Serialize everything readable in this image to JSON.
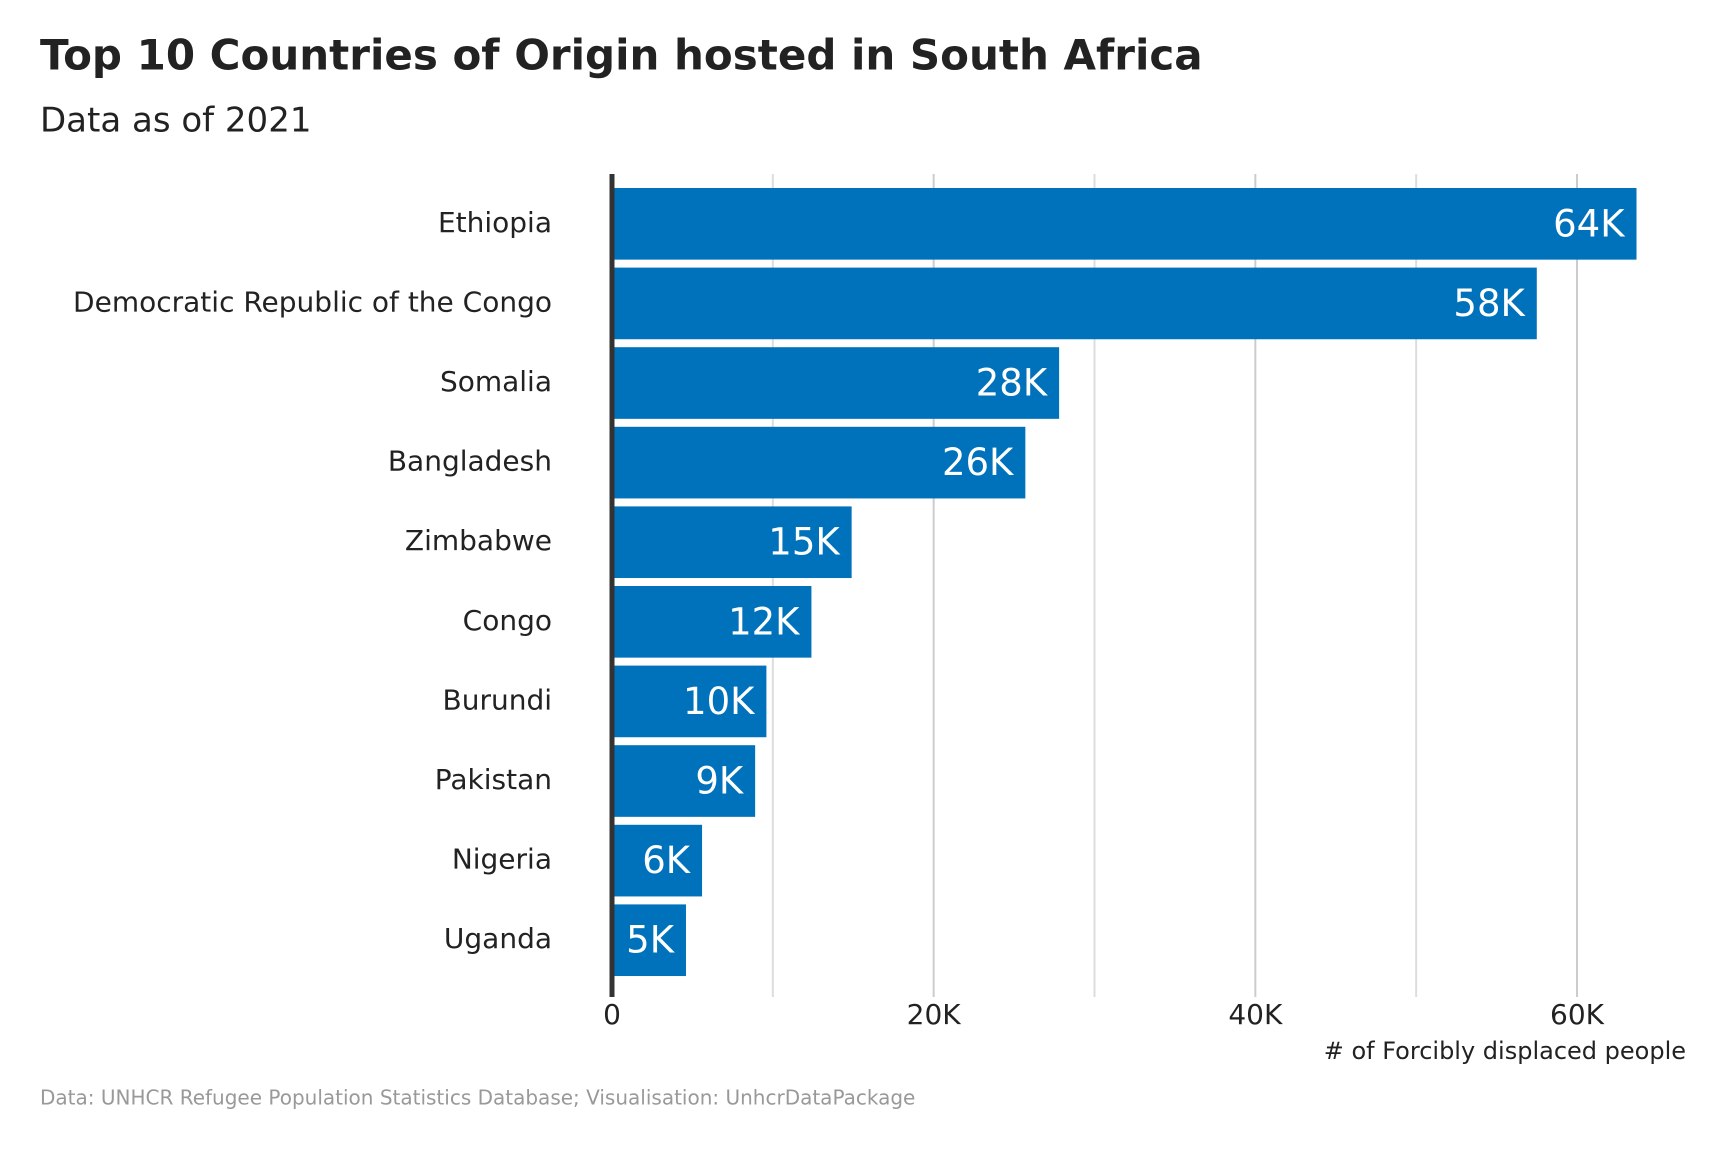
{
  "chart_data": {
    "type": "hbar",
    "title": "Top 10 Countries of Origin hosted in South Africa",
    "subtitle": "Data as of 2021",
    "x_label": "# of Forcibly displaced people",
    "caption": "Data: UNHCR Refugee Population Statistics Database; Visualisation: UnhcrDataPackage",
    "categories": [
      "Ethiopia",
      "Democratic Republic of the Congo",
      "Somalia",
      "Bangladesh",
      "Zimbabwe",
      "Congo",
      "Burundi",
      "Pakistan",
      "Nigeria",
      "Uganda"
    ],
    "values": [
      63700,
      57500,
      27800,
      25700,
      14900,
      12400,
      9600,
      8900,
      5600,
      4600
    ],
    "value_labels": [
      "64K",
      "58K",
      "28K",
      "26K",
      "15K",
      "12K",
      "10K",
      "9K",
      "6K",
      "5K"
    ],
    "color": "#0072bc",
    "xlim": [
      0,
      67000
    ],
    "xticks": [
      0,
      {
        "value": 20000,
        "label": "20K"
      },
      {
        "value": 40000,
        "label": "40K"
      },
      {
        "value": 60000,
        "label": "60K"
      }
    ],
    "minor_xticks": [
      10000,
      30000,
      50000
    ],
    "grid": true
  }
}
